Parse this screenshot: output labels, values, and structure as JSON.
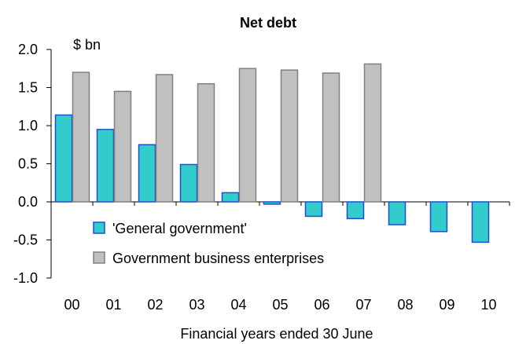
{
  "chart_data": {
    "type": "bar",
    "title": "Net debt",
    "unit_label": "$ bn",
    "xlabel": "Financial years ended 30 June",
    "ylabel": "",
    "categories": [
      "00",
      "01",
      "02",
      "03",
      "04",
      "05",
      "06",
      "07",
      "08",
      "09",
      "10"
    ],
    "ylim": [
      -1.0,
      2.0
    ],
    "yticks": [
      "2.0",
      "1.5",
      "1.0",
      "0.5",
      "0.0",
      "-0.5",
      "-1.0"
    ],
    "series": [
      {
        "name": "'General government'",
        "color": "#33cccc",
        "border": "#1f4fd0",
        "values": [
          1.14,
          0.95,
          0.75,
          0.49,
          0.12,
          -0.03,
          -0.19,
          -0.22,
          -0.3,
          -0.39,
          -0.53
        ]
      },
      {
        "name": "Government business enterprises",
        "color": "#c0c0c0",
        "border": "#808080",
        "values": [
          1.7,
          1.45,
          1.67,
          1.55,
          1.75,
          1.73,
          1.69,
          1.81,
          null,
          null,
          null
        ]
      }
    ],
    "legend_position": "lower-left inside plot",
    "grid": false
  }
}
